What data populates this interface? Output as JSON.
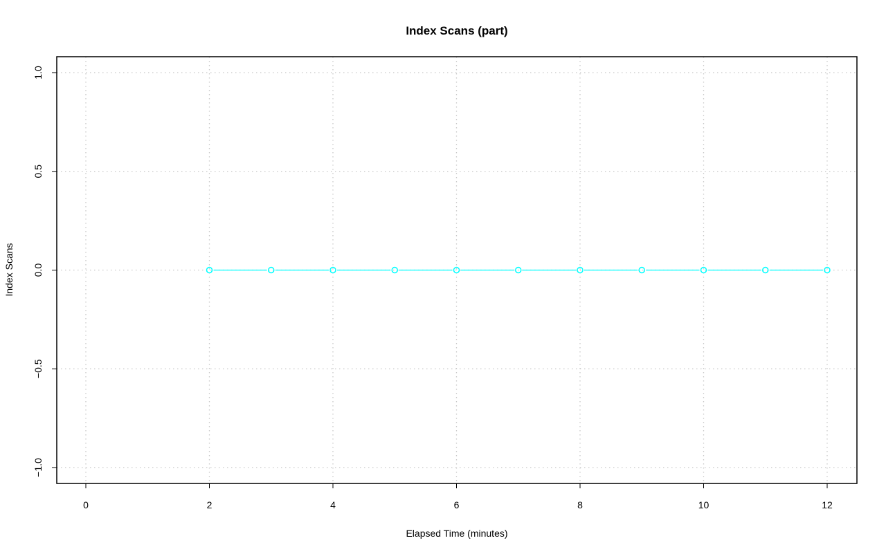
{
  "chart_data": {
    "type": "line",
    "title": "Index Scans (part)",
    "xlabel": "Elapsed Time (minutes)",
    "ylabel": "Index Scans",
    "xlim": [
      0,
      12
    ],
    "ylim": [
      -1,
      1
    ],
    "x_ticks": [
      0,
      2,
      4,
      6,
      8,
      10,
      12
    ],
    "y_ticks": [
      -1.0,
      -0.5,
      0.0,
      0.5,
      1.0
    ],
    "y_tick_labels": [
      "−1.0",
      "−0.5",
      "0.0",
      "0.5",
      "1.0"
    ],
    "grid": true,
    "series": [
      {
        "color": "#00ffff",
        "marker": "open-circle",
        "x": [
          2,
          3,
          4,
          5,
          6,
          7,
          8,
          9,
          10,
          11,
          12
        ],
        "y": [
          0,
          0,
          0,
          0,
          0,
          0,
          0,
          0,
          0,
          0,
          0
        ]
      }
    ]
  }
}
